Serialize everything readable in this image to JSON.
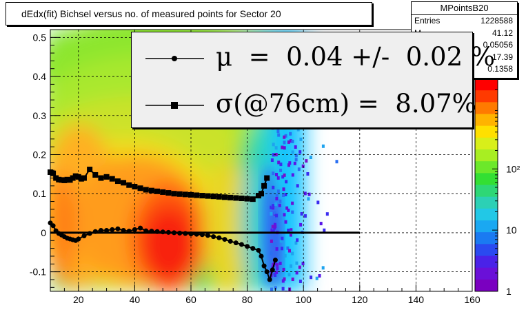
{
  "chart_data": {
    "type": "heatmap",
    "title": "dEdx(fit) Bichsel versus no. of measured points for Sector 20",
    "xlim": [
      10,
      160
    ],
    "ylim": [
      -0.15,
      0.52
    ],
    "x_ticks": [
      "20",
      "40",
      "60",
      "80",
      "100",
      "120",
      "140",
      "160"
    ],
    "y_ticks": [
      "-0.1",
      "0",
      "0.1",
      "0.2",
      "0.3",
      "0.4",
      "0.5"
    ],
    "grid": true,
    "z_scale": "log",
    "z_range": [
      1,
      3000
    ],
    "z_ticks": [
      "1",
      "10",
      "10²"
    ],
    "stats": {
      "name": "MPointsB20",
      "rows": [
        {
          "name": "Entries",
          "value": "1228588"
        },
        {
          "name": "M",
          "value": "41.12"
        },
        {
          "name": "",
          "value": "0.05056"
        },
        {
          "name": "",
          "value": "17.39"
        },
        {
          "name": "",
          "value": "0.1358"
        }
      ]
    },
    "legend": [
      {
        "symbol": "circle",
        "text": "μ  =  0.04 +/-  0.02 %"
      },
      {
        "symbol": "square",
        "text": "σ(@76cm) =  8.07%"
      }
    ],
    "series": [
      {
        "marker": "circle",
        "x": [
          10,
          11,
          12,
          13,
          14,
          15,
          16,
          17,
          18,
          19,
          20,
          22,
          24,
          26,
          28,
          30,
          32,
          34,
          36,
          38,
          40,
          42,
          44,
          46,
          48,
          50,
          52,
          54,
          56,
          58,
          60,
          62,
          64,
          66,
          68,
          70,
          72,
          74,
          76,
          78,
          80,
          82,
          84,
          85,
          86,
          87,
          88,
          89,
          90
        ],
        "y": [
          0.025,
          0.018,
          0.005,
          -0.002,
          -0.006,
          -0.01,
          -0.014,
          -0.016,
          -0.018,
          -0.02,
          -0.016,
          -0.008,
          -0.002,
          0.003,
          0.006,
          0.006,
          0.008,
          0.01,
          0.006,
          0.004,
          0.008,
          0.012,
          0.005,
          0.004,
          0.003,
          0.002,
          0.001,
          0.0,
          -0.001,
          -0.002,
          -0.003,
          -0.004,
          -0.005,
          -0.007,
          -0.01,
          -0.013,
          -0.017,
          -0.022,
          -0.026,
          -0.03,
          -0.035,
          -0.04,
          -0.045,
          -0.06,
          -0.085,
          -0.1,
          -0.12,
          -0.095,
          -0.07
        ]
      },
      {
        "marker": "line",
        "x": [
          10,
          120
        ],
        "y": [
          0.0,
          0.0
        ]
      },
      {
        "marker": "square",
        "x": [
          10,
          11,
          12,
          13,
          14,
          15,
          16,
          17,
          18,
          19,
          20,
          21,
          22,
          24,
          26,
          28,
          30,
          32,
          34,
          36,
          38,
          40,
          42,
          44,
          46,
          48,
          50,
          52,
          54,
          56,
          58,
          60,
          62,
          64,
          66,
          68,
          70,
          72,
          74,
          76,
          78,
          80,
          82,
          84,
          85,
          86,
          87
        ],
        "y": [
          0.155,
          0.152,
          0.14,
          0.136,
          0.135,
          0.134,
          0.136,
          0.135,
          0.14,
          0.145,
          0.143,
          0.138,
          0.14,
          0.162,
          0.148,
          0.14,
          0.143,
          0.138,
          0.132,
          0.128,
          0.122,
          0.118,
          0.114,
          0.11,
          0.108,
          0.106,
          0.104,
          0.102,
          0.1,
          0.099,
          0.098,
          0.097,
          0.096,
          0.095,
          0.094,
          0.093,
          0.092,
          0.091,
          0.09,
          0.089,
          0.088,
          0.087,
          0.086,
          0.095,
          0.1,
          0.12,
          0.14
        ]
      }
    ]
  }
}
